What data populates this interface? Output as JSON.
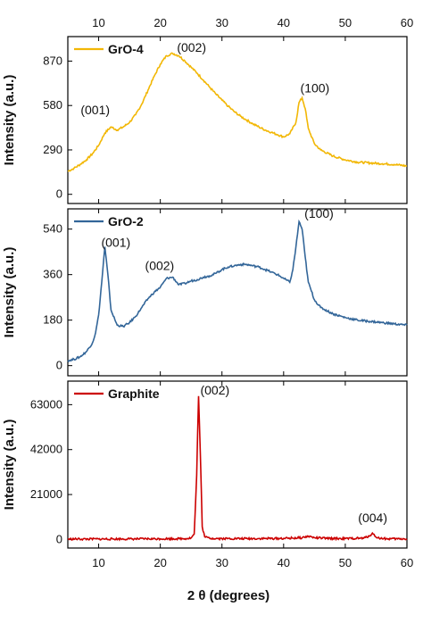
{
  "xlabel": "2 θ (degrees)",
  "chart_data": [
    {
      "type": "line",
      "legend": "GrO-4",
      "color": "#f2b705",
      "ylabel": "Intensity (a.u.)",
      "xlim": [
        5,
        60
      ],
      "ylim": [
        -60,
        1030
      ],
      "xticks": [
        10,
        20,
        30,
        40,
        50,
        60
      ],
      "xtick_labels_top": [
        "10",
        "20",
        "30",
        "40",
        "50",
        "60"
      ],
      "yticks": [
        0,
        290,
        580,
        870
      ],
      "ytick_labels": [
        "0",
        "290",
        "580",
        "870"
      ],
      "series": [
        {
          "name": "GrO-4",
          "x": [
            5,
            6,
            7,
            8,
            9,
            10,
            11,
            12,
            13,
            14,
            15,
            16,
            17,
            18,
            19,
            20,
            21,
            22,
            23,
            24,
            25,
            26,
            27,
            28,
            29,
            30,
            31,
            32,
            33,
            34,
            35,
            36,
            37,
            38,
            39,
            40,
            41,
            42,
            42.5,
            43,
            43.5,
            44,
            45,
            46,
            48,
            50,
            52,
            54,
            56,
            58,
            60
          ],
          "y": [
            150,
            170,
            195,
            225,
            265,
            320,
            400,
            440,
            420,
            440,
            470,
            520,
            590,
            680,
            770,
            850,
            905,
            920,
            905,
            870,
            830,
            790,
            745,
            700,
            655,
            615,
            575,
            540,
            510,
            485,
            460,
            440,
            420,
            405,
            390,
            375,
            395,
            470,
            600,
            630,
            560,
            430,
            330,
            290,
            250,
            225,
            210,
            205,
            200,
            195,
            185
          ]
        }
      ],
      "annotations": [
        {
          "text": "(001)",
          "x": 12,
          "y": 440
        },
        {
          "text": "(002)",
          "x": 23,
          "y": 920
        },
        {
          "text": "(100)",
          "x": 43,
          "y": 630
        }
      ]
    },
    {
      "type": "line",
      "legend": "GrO-2",
      "color": "#336699",
      "ylabel": "Intensity (a.u.)",
      "xlim": [
        5,
        60
      ],
      "ylim": [
        -40,
        620
      ],
      "yticks": [
        0,
        180,
        360,
        540
      ],
      "ytick_labels": [
        "0",
        "180",
        "360",
        "540"
      ],
      "series": [
        {
          "name": "GrO-2",
          "x": [
            5,
            6,
            7,
            8,
            9,
            9.5,
            10,
            10.5,
            11,
            11.5,
            12,
            13,
            14,
            15,
            16,
            17,
            18,
            19,
            20,
            21,
            22,
            23,
            24,
            25,
            26,
            27,
            28,
            29,
            30,
            31,
            32,
            33,
            34,
            35,
            36,
            37,
            38,
            39,
            40,
            41,
            41.5,
            42,
            42.5,
            43,
            43.5,
            44,
            45,
            46,
            48,
            50,
            52,
            54,
            56,
            58,
            60
          ],
          "y": [
            20,
            25,
            35,
            55,
            90,
            130,
            200,
            330,
            470,
            360,
            220,
            160,
            155,
            170,
            195,
            230,
            265,
            290,
            310,
            345,
            350,
            320,
            325,
            335,
            340,
            350,
            355,
            365,
            380,
            390,
            395,
            400,
            400,
            395,
            390,
            380,
            370,
            360,
            345,
            330,
            380,
            470,
            570,
            540,
            430,
            330,
            260,
            230,
            205,
            190,
            180,
            175,
            170,
            165,
            160
          ]
        }
      ],
      "annotations": [
        {
          "text": "(001)",
          "x": 11,
          "y": 470
        },
        {
          "text": "(002)",
          "x": 21,
          "y": 350
        },
        {
          "text": "(100)",
          "x": 42.8,
          "y": 570
        }
      ]
    },
    {
      "type": "line",
      "legend": "Graphite",
      "color": "#cc0000",
      "ylabel": "Intensity (a.u.)",
      "xlim": [
        5,
        60
      ],
      "ylim": [
        -4000,
        74000
      ],
      "xticks": [
        10,
        20,
        30,
        40,
        50,
        60
      ],
      "xtick_labels": [
        "10",
        "20",
        "30",
        "40",
        "50",
        "60"
      ],
      "yticks": [
        0,
        21000,
        42000,
        63000
      ],
      "ytick_labels": [
        "0",
        "21000",
        "42000",
        "63000"
      ],
      "series": [
        {
          "name": "Graphite",
          "x": [
            5,
            10,
            15,
            20,
            24,
            25,
            25.5,
            25.9,
            26.2,
            26.5,
            26.8,
            27.2,
            28,
            30,
            35,
            40,
            43,
            44,
            44.5,
            45,
            47,
            50,
            53,
            54,
            54.4,
            54.8,
            55.5,
            57,
            60
          ],
          "y": [
            200,
            200,
            250,
            300,
            400,
            700,
            2500,
            30000,
            67000,
            40000,
            6000,
            1200,
            600,
            400,
            400,
            500,
            800,
            1500,
            1200,
            800,
            500,
            400,
            600,
            1800,
            3000,
            1500,
            600,
            300,
            300
          ]
        }
      ],
      "annotations": [
        {
          "text": "(002)",
          "x": 26.2,
          "y": 67000
        },
        {
          "text": "(004)",
          "x": 54.4,
          "y": 3000
        }
      ]
    }
  ]
}
